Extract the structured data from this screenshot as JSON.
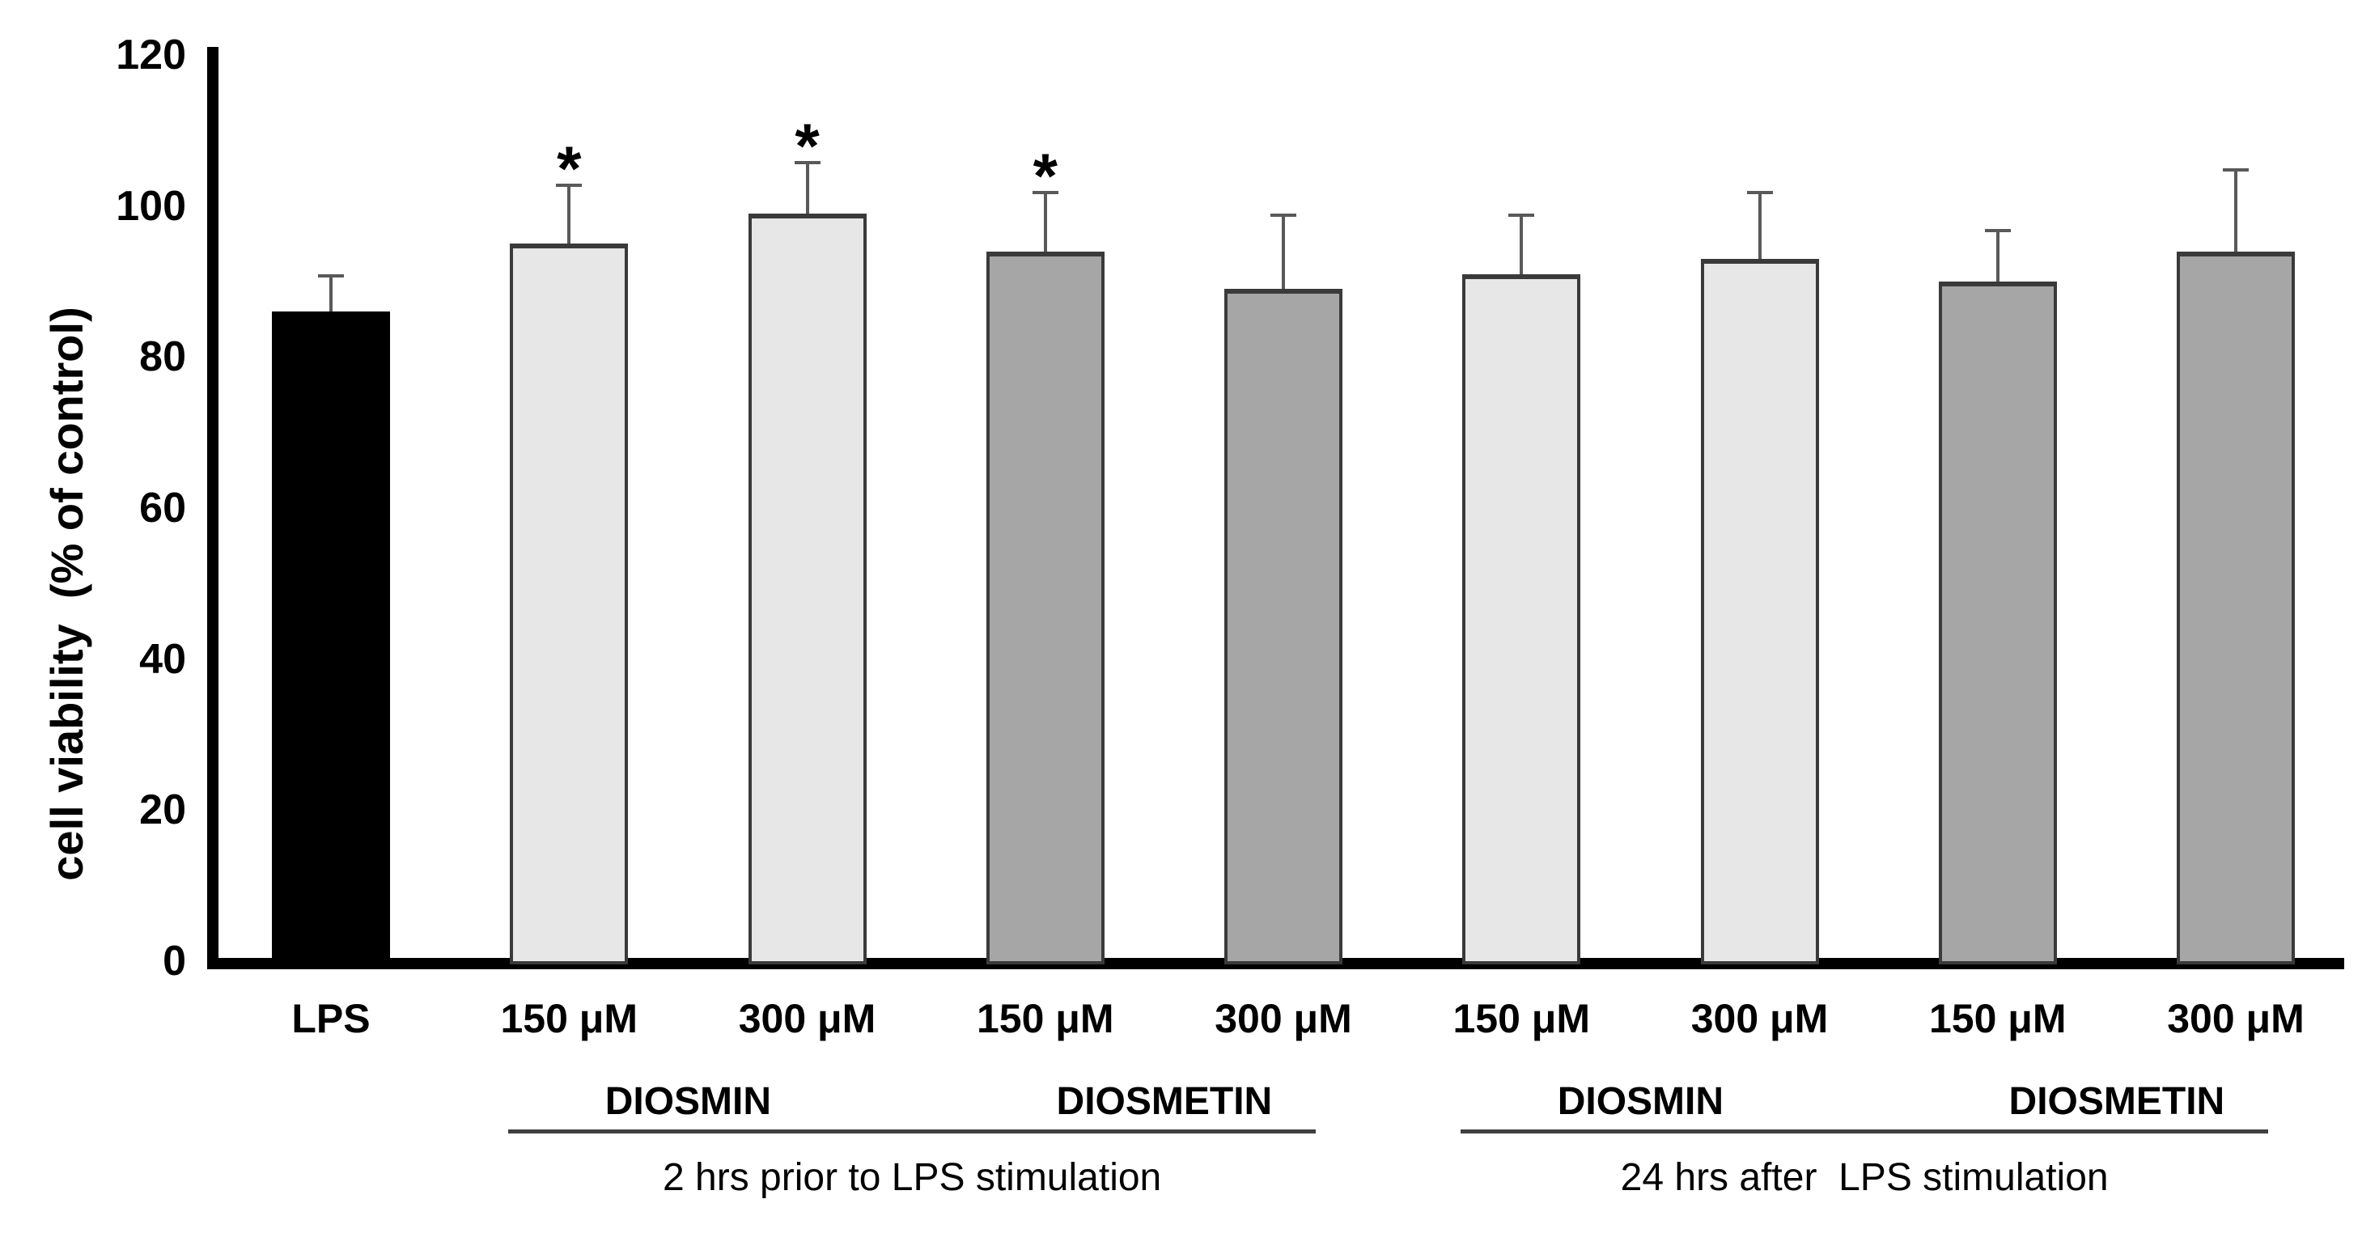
{
  "chart_data": {
    "type": "bar",
    "title": "",
    "xlabel": "",
    "ylabel": "cell viability  (% of control)",
    "ylim": [
      0,
      120
    ],
    "yticks": [
      0,
      20,
      40,
      60,
      80,
      100,
      120
    ],
    "grid": false,
    "legend": null,
    "significance_marker": "*",
    "bars": [
      {
        "label": "LPS",
        "value": 86,
        "error": 5,
        "fill": "black",
        "significant": false
      },
      {
        "label": "150 μM",
        "value": 95,
        "error": 8,
        "fill": "light",
        "significant": true
      },
      {
        "label": "300 μM",
        "value": 99,
        "error": 7,
        "fill": "light",
        "significant": true
      },
      {
        "label": "150 μM",
        "value": 94,
        "error": 8,
        "fill": "dark",
        "significant": true
      },
      {
        "label": "300 μM",
        "value": 89,
        "error": 10,
        "fill": "dark",
        "significant": false
      },
      {
        "label": "150 μM",
        "value": 91,
        "error": 8,
        "fill": "light",
        "significant": false
      },
      {
        "label": "300 μM",
        "value": 93,
        "error": 9,
        "fill": "light",
        "significant": false
      },
      {
        "label": "150 μM",
        "value": 90,
        "error": 7,
        "fill": "dark",
        "significant": false
      },
      {
        "label": "300 μM",
        "value": 94,
        "error": 11,
        "fill": "dark",
        "significant": false
      }
    ],
    "compound_groups": [
      {
        "label": "DIOSMIN",
        "bars": [
          1,
          2
        ]
      },
      {
        "label": "DIOSMETIN",
        "bars": [
          3,
          4
        ]
      },
      {
        "label": "DIOSMIN",
        "bars": [
          5,
          6
        ]
      },
      {
        "label": "DIOSMETIN",
        "bars": [
          7,
          8
        ]
      }
    ],
    "timing_groups": [
      {
        "label": "2 hrs prior to LPS stimulation",
        "bars": [
          1,
          4
        ]
      },
      {
        "label": "24 hrs after  LPS stimulation",
        "bars": [
          5,
          8
        ]
      }
    ],
    "colors": {
      "black": "#000000",
      "light": "#e7e7e7",
      "dark": "#a6a6a6",
      "bar_border": "#3a3a3a",
      "error_bar": "#595959",
      "axis": "#000000",
      "annotation_line": "#3f3f3f"
    }
  }
}
